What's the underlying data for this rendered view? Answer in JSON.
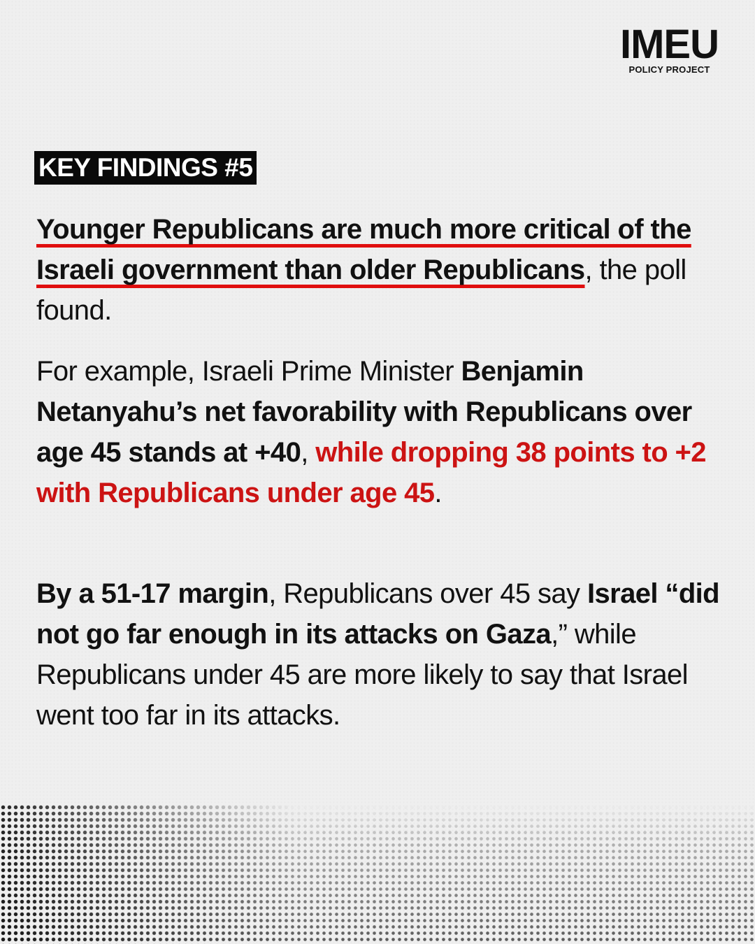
{
  "logo": {
    "main": "IMEU",
    "sub": "POLICY PROJECT"
  },
  "badge": "KEY FINDINGS #5",
  "para1": {
    "underlined": "Younger Republicans are much more critical of the Israeli government than older Republicans",
    "rest": ", the poll found."
  },
  "para2": {
    "intro": "For example, Israeli Prime Minister ",
    "bold": "Benjamin Netanyahu’s net favorability with Republicans over age 45 stands at +40",
    "comma": ", ",
    "red": "while dropping 38 points to +2 with Republicans under age 45",
    "end": "."
  },
  "para3": {
    "bold1": "By a 51-17 margin",
    "text1": ", Republicans over 45 say ",
    "bold2": "Israel “did not go far enough in its attacks on Gaza",
    "text2": ",” while Republicans under 45 are more likely to say that Israel went too far in its attacks."
  }
}
